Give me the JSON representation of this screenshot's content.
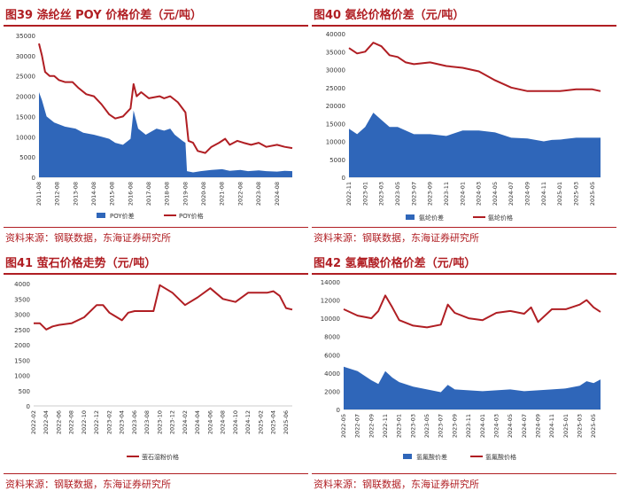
{
  "source_note": "资料来源：钢联数据，东海证券研究所",
  "chart_data": [
    {
      "id": "fig39",
      "type": "area",
      "title": "图39  涤纶丝 POY 价格价差（元/吨）",
      "ylim": [
        0,
        35000
      ],
      "yticks": [
        0,
        5000,
        10000,
        15000,
        20000,
        25000,
        30000,
        35000
      ],
      "xlim": [
        "2011-08",
        "2025-06"
      ],
      "xticks": [
        "2011-08",
        "2012-08",
        "2013-08",
        "2014-08",
        "2015-08",
        "2016-08",
        "2017-08",
        "2018-08",
        "2019-08",
        "2020-08",
        "2021-08",
        "2022-08",
        "2023-08",
        "2024-08"
      ],
      "series": [
        {
          "name": "POY价差",
          "type": "area",
          "color": "#2f66b9",
          "x": [
            "2011-08",
            "2011-10",
            "2012-01",
            "2012-06",
            "2013-01",
            "2013-08",
            "2014-01",
            "2014-08",
            "2015-01",
            "2015-06",
            "2015-10",
            "2016-03",
            "2016-08",
            "2016-10",
            "2017-01",
            "2017-06",
            "2018-01",
            "2018-06",
            "2018-10",
            "2019-01",
            "2019-06",
            "2019-08",
            "2019-09",
            "2020-01",
            "2020-06",
            "2021-01",
            "2021-08",
            "2022-01",
            "2022-08",
            "2023-01",
            "2023-08",
            "2024-01",
            "2024-08",
            "2025-01",
            "2025-06"
          ],
          "values": [
            21000,
            19000,
            15000,
            13500,
            12500,
            12000,
            11000,
            10500,
            10000,
            9500,
            8500,
            8000,
            9500,
            16500,
            12000,
            10500,
            12000,
            11500,
            12000,
            10500,
            9000,
            8500,
            1500,
            1200,
            1500,
            1800,
            2000,
            1600,
            1800,
            1500,
            1700,
            1500,
            1400,
            1600,
            1500
          ]
        },
        {
          "name": "POY价格",
          "type": "line",
          "color": "#b01e23",
          "x": [
            "2011-08",
            "2011-10",
            "2011-12",
            "2012-03",
            "2012-06",
            "2012-09",
            "2013-01",
            "2013-06",
            "2013-10",
            "2014-03",
            "2014-08",
            "2015-01",
            "2015-06",
            "2015-10",
            "2016-03",
            "2016-08",
            "2016-10",
            "2016-12",
            "2017-03",
            "2017-08",
            "2018-03",
            "2018-06",
            "2018-10",
            "2019-03",
            "2019-08",
            "2019-10",
            "2020-01",
            "2020-04",
            "2020-09",
            "2021-01",
            "2021-06",
            "2021-10",
            "2022-01",
            "2022-06",
            "2022-10",
            "2023-03",
            "2023-08",
            "2024-01",
            "2024-08",
            "2025-01",
            "2025-06"
          ],
          "values": [
            33000,
            30000,
            26000,
            25000,
            25000,
            24000,
            23500,
            23500,
            22000,
            20500,
            20000,
            18000,
            15500,
            14500,
            15000,
            17000,
            23000,
            20000,
            21000,
            19500,
            20000,
            19500,
            20000,
            18500,
            16000,
            9000,
            8500,
            6500,
            6000,
            7500,
            8500,
            9500,
            8000,
            9000,
            8500,
            8000,
            8500,
            7500,
            8000,
            7500,
            7200
          ]
        }
      ]
    },
    {
      "id": "fig40",
      "type": "area",
      "title": "图40  氨纶价格价差（元/吨）",
      "ylim": [
        0,
        40000
      ],
      "yticks": [
        0,
        5000,
        10000,
        15000,
        20000,
        25000,
        30000,
        35000,
        40000
      ],
      "xlim": [
        "2022-11",
        "2025-06"
      ],
      "xticks": [
        "2022-11",
        "2023-01",
        "2023-03",
        "2023-05",
        "2023-07",
        "2023-09",
        "2023-11",
        "2024-01",
        "2024-03",
        "2024-05",
        "2024-07",
        "2024-09",
        "2024-11",
        "2025-01",
        "2025-03",
        "2025-05"
      ],
      "series": [
        {
          "name": "氨纶价差",
          "type": "area",
          "color": "#2f66b9",
          "x": [
            "2022-11",
            "2022-12",
            "2023-01",
            "2023-02",
            "2023-03",
            "2023-04",
            "2023-05",
            "2023-07",
            "2023-09",
            "2023-11",
            "2024-01",
            "2024-03",
            "2024-05",
            "2024-07",
            "2024-09",
            "2024-11",
            "2024-12",
            "2025-01",
            "2025-03",
            "2025-05",
            "2025-06"
          ],
          "values": [
            13500,
            12000,
            14000,
            18000,
            16000,
            14000,
            14000,
            12000,
            12000,
            11500,
            13000,
            13000,
            12500,
            11000,
            10800,
            10000,
            10400,
            10500,
            11000,
            11000,
            11000
          ]
        },
        {
          "name": "氨纶价格",
          "type": "line",
          "color": "#b01e23",
          "x": [
            "2022-11",
            "2022-12",
            "2023-01",
            "2023-02",
            "2023-03",
            "2023-04",
            "2023-05",
            "2023-06",
            "2023-07",
            "2023-09",
            "2023-11",
            "2024-01",
            "2024-03",
            "2024-05",
            "2024-07",
            "2024-09",
            "2024-11",
            "2025-01",
            "2025-03",
            "2025-05",
            "2025-06"
          ],
          "values": [
            36000,
            34500,
            35000,
            37500,
            36500,
            34000,
            33500,
            32000,
            31500,
            32000,
            31000,
            30500,
            29500,
            27000,
            25000,
            24000,
            24000,
            24000,
            24500,
            24500,
            24000
          ]
        }
      ]
    },
    {
      "id": "fig41",
      "type": "line",
      "title": "图41  萤石价格走势（元/吨）",
      "ylim": [
        0,
        4000
      ],
      "yticks": [
        0,
        500,
        1000,
        1500,
        2000,
        2500,
        3000,
        3500,
        4000
      ],
      "xlim": [
        "2022-02",
        "2025-07"
      ],
      "xticks": [
        "2022-02",
        "2022-04",
        "2022-06",
        "2022-08",
        "2022-10",
        "2022-12",
        "2023-02",
        "2023-04",
        "2023-06",
        "2023-08",
        "2023-10",
        "2023-12",
        "2024-02",
        "2024-04",
        "2024-06",
        "2024-08",
        "2024-10",
        "2024-12",
        "2025-02",
        "2025-04",
        "2025-06"
      ],
      "series": [
        {
          "name": "萤石湿粉价格",
          "type": "line",
          "color": "#b01e23",
          "x": [
            "2022-02",
            "2022-03",
            "2022-04",
            "2022-05",
            "2022-06",
            "2022-08",
            "2022-10",
            "2022-12",
            "2023-01",
            "2023-02",
            "2023-04",
            "2023-05",
            "2023-06",
            "2023-08",
            "2023-09",
            "2023-10",
            "2023-12",
            "2024-02",
            "2024-04",
            "2024-06",
            "2024-08",
            "2024-10",
            "2024-12",
            "2025-02",
            "2025-03",
            "2025-04",
            "2025-05",
            "2025-06",
            "2025-07"
          ],
          "values": [
            2700,
            2700,
            2500,
            2600,
            2650,
            2700,
            2900,
            3300,
            3300,
            3050,
            2800,
            3050,
            3100,
            3100,
            3100,
            3950,
            3700,
            3300,
            3550,
            3850,
            3500,
            3400,
            3700,
            3700,
            3700,
            3750,
            3600,
            3200,
            3150
          ]
        }
      ]
    },
    {
      "id": "fig42",
      "type": "area",
      "title": "图42  氢氟酸价格价差（元/吨）",
      "ylim": [
        0,
        14000
      ],
      "yticks": [
        0,
        2000,
        4000,
        6000,
        8000,
        10000,
        12000,
        14000
      ],
      "xlim": [
        "2022-05",
        "2025-06"
      ],
      "xticks": [
        "2022-05",
        "2022-07",
        "2022-09",
        "2022-11",
        "2023-01",
        "2023-03",
        "2023-05",
        "2023-07",
        "2023-09",
        "2023-11",
        "2024-01",
        "2024-03",
        "2024-05",
        "2024-07",
        "2024-09",
        "2024-11",
        "2025-01",
        "2025-03",
        "2025-05"
      ],
      "series": [
        {
          "name": "氢氟酸价差",
          "type": "area",
          "color": "#2f66b9",
          "x": [
            "2022-05",
            "2022-07",
            "2022-09",
            "2022-10",
            "2022-11",
            "2022-12",
            "2023-01",
            "2023-03",
            "2023-05",
            "2023-07",
            "2023-08",
            "2023-09",
            "2023-11",
            "2024-01",
            "2024-03",
            "2024-05",
            "2024-07",
            "2024-09",
            "2024-11",
            "2025-01",
            "2025-03",
            "2025-04",
            "2025-05",
            "2025-06"
          ],
          "values": [
            4700,
            4200,
            3200,
            2800,
            4200,
            3500,
            3000,
            2500,
            2200,
            1900,
            2700,
            2200,
            2100,
            2000,
            2100,
            2200,
            2000,
            2100,
            2200,
            2300,
            2600,
            3100,
            2900,
            3300
          ]
        },
        {
          "name": "氢氟酸价格",
          "type": "line",
          "color": "#b01e23",
          "x": [
            "2022-05",
            "2022-07",
            "2022-09",
            "2022-10",
            "2022-11",
            "2022-12",
            "2023-01",
            "2023-03",
            "2023-05",
            "2023-07",
            "2023-08",
            "2023-09",
            "2023-11",
            "2024-01",
            "2024-03",
            "2024-05",
            "2024-07",
            "2024-08",
            "2024-09",
            "2024-11",
            "2025-01",
            "2025-03",
            "2025-04",
            "2025-05",
            "2025-06"
          ],
          "values": [
            11000,
            10300,
            10000,
            10800,
            12500,
            11200,
            9800,
            9200,
            9000,
            9300,
            11500,
            10600,
            10000,
            9800,
            10600,
            10800,
            10500,
            11200,
            9600,
            11000,
            11000,
            11500,
            12000,
            11200,
            10700
          ]
        }
      ]
    }
  ]
}
